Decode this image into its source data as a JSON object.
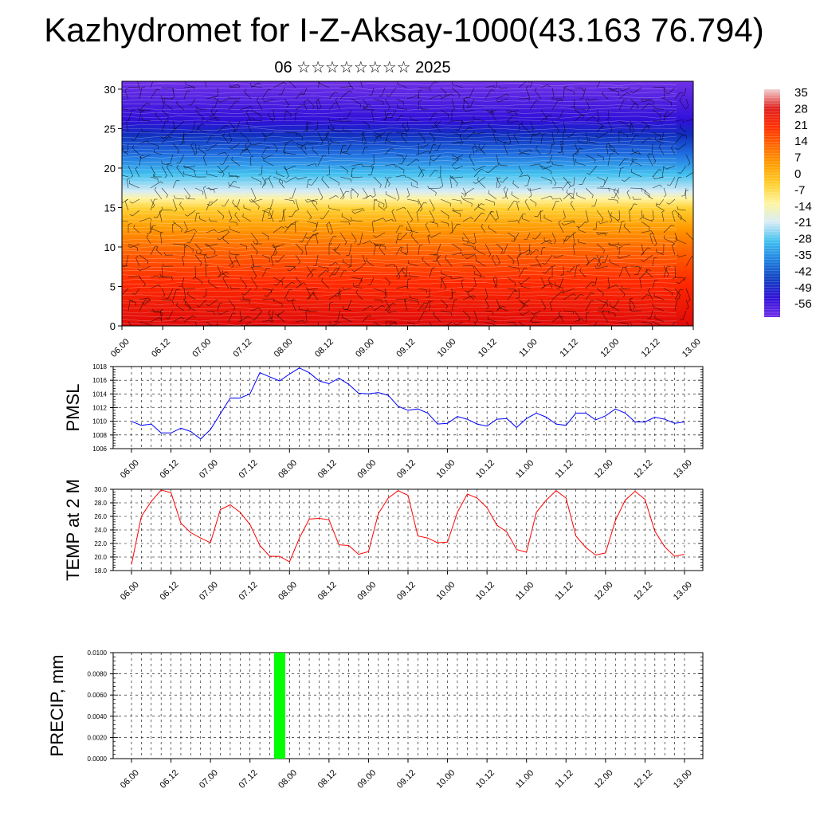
{
  "title": "Kazhydromet for I-Z-Aksay-1000(43.163 76.794)",
  "subtitle": "06 ☆☆☆☆☆☆☆☆ 2025",
  "colors": {
    "pmsl_line": "#0000ff",
    "temp_line": "#ff0000",
    "precip_bar": "#00ff00",
    "grid": "#000000"
  },
  "chart_data": [
    {
      "id": "cross_section",
      "type": "heatmap",
      "title": "",
      "x_ticks": [
        "06.00",
        "06.12",
        "07.00",
        "07.12",
        "08.00",
        "08.12",
        "09.00",
        "09.12",
        "10.00",
        "10.12",
        "11.00",
        "11.12",
        "12.00",
        "12.12",
        "13.00"
      ],
      "y_ticks": [
        0,
        5,
        10,
        15,
        20,
        25,
        30
      ],
      "ylim": [
        0,
        31
      ],
      "colorbar_labels": [
        "35",
        "28",
        "21",
        "14",
        "7",
        "0",
        "-7",
        "-14",
        "-21",
        "-28",
        "-35",
        "-42",
        "-49",
        "-56"
      ],
      "color_stops": [
        "#f2d0d0",
        "#e02020",
        "#ff3000",
        "#ff6a00",
        "#ffa000",
        "#ffd030",
        "#fff5a0",
        "#d8ecf5",
        "#40c0ef",
        "#2080e0",
        "#1040c0",
        "#3010d8",
        "#7030e8"
      ],
      "wind_barbs": true
    },
    {
      "id": "pmsl",
      "type": "line",
      "ylabel": "PMSL",
      "x_ticks": [
        "06.00",
        "06.12",
        "07.00",
        "07.12",
        "08.00",
        "08.12",
        "09.00",
        "09.12",
        "10.00",
        "10.12",
        "11.00",
        "11.12",
        "12.00",
        "12.12",
        "13.00"
      ],
      "y_ticks": [
        "1006",
        "1008",
        "1010",
        "1012",
        "1014",
        "1016",
        "1018"
      ],
      "ylim": [
        1006,
        1018
      ],
      "x": [
        0,
        1,
        2,
        3,
        4,
        5,
        6,
        7,
        8,
        9,
        10,
        11,
        12,
        13,
        14,
        15,
        16,
        17,
        18,
        19,
        20,
        21,
        22,
        23,
        24,
        25,
        26,
        27,
        28,
        29,
        30,
        31,
        32,
        33,
        34,
        35,
        36,
        37,
        38,
        39,
        40,
        41,
        42,
        43,
        44,
        45,
        46,
        47,
        48,
        49,
        50,
        51,
        52,
        53,
        54,
        55,
        56
      ],
      "values": [
        1010.0,
        1009.4,
        1009.6,
        1008.3,
        1008.3,
        1009.0,
        1008.5,
        1007.4,
        1008.8,
        1011.1,
        1013.4,
        1013.4,
        1014.0,
        1017.1,
        1016.5,
        1015.9,
        1016.9,
        1017.8,
        1017.1,
        1015.9,
        1015.5,
        1016.3,
        1015.4,
        1014.1,
        1014.0,
        1014.2,
        1013.8,
        1012.2,
        1011.6,
        1011.8,
        1011.2,
        1009.6,
        1009.7,
        1010.7,
        1010.3,
        1009.6,
        1009.3,
        1010.3,
        1010.4,
        1009.1,
        1010.4,
        1011.2,
        1010.6,
        1009.6,
        1009.4,
        1011.2,
        1011.2,
        1010.2,
        1010.8,
        1011.8,
        1011.2,
        1009.9,
        1009.9,
        1010.6,
        1010.3,
        1009.7,
        1009.9
      ]
    },
    {
      "id": "temp2m",
      "type": "line",
      "ylabel": "TEMP at 2 M",
      "x_ticks": [
        "06.00",
        "06.12",
        "07.00",
        "07.12",
        "08.00",
        "08.12",
        "09.00",
        "09.12",
        "10.00",
        "10.12",
        "11.00",
        "11.12",
        "12.00",
        "12.12",
        "13.00"
      ],
      "y_ticks": [
        "18.0",
        "20.0",
        "22.0",
        "24.0",
        "26.0",
        "28.0",
        "30.0"
      ],
      "ylim": [
        18,
        30
      ],
      "x": [
        0,
        1,
        2,
        3,
        4,
        5,
        6,
        7,
        8,
        9,
        10,
        11,
        12,
        13,
        14,
        15,
        16,
        17,
        18,
        19,
        20,
        21,
        22,
        23,
        24,
        25,
        26,
        27,
        28,
        29,
        30,
        31,
        32,
        33,
        34,
        35,
        36,
        37,
        38,
        39,
        40,
        41,
        42,
        43,
        44,
        45,
        46,
        47,
        48,
        49,
        50,
        51,
        52,
        53,
        54,
        55,
        56
      ],
      "values": [
        18.9,
        26.0,
        28.2,
        29.9,
        29.5,
        25.0,
        23.6,
        22.8,
        22.1,
        27.0,
        27.7,
        26.6,
        24.8,
        21.7,
        20.1,
        20.1,
        19.3,
        22.8,
        25.6,
        25.7,
        25.5,
        21.8,
        21.7,
        20.4,
        20.8,
        26.4,
        28.7,
        29.8,
        29.1,
        23.1,
        22.8,
        22.1,
        22.2,
        26.6,
        29.3,
        28.7,
        27.3,
        24.7,
        23.7,
        21.1,
        20.7,
        26.6,
        28.4,
        29.8,
        28.7,
        23.1,
        21.4,
        20.3,
        20.6,
        25.4,
        28.4,
        29.7,
        28.5,
        23.8,
        21.5,
        20.1,
        20.4
      ]
    },
    {
      "id": "precip",
      "type": "bar",
      "ylabel": "PRECIP, mm",
      "x_ticks": [
        "06.00",
        "06.12",
        "07.00",
        "07.12",
        "08.00",
        "08.12",
        "09.00",
        "09.12",
        "10.00",
        "10.12",
        "11.00",
        "11.12",
        "12.00",
        "12.12",
        "13.00"
      ],
      "y_ticks": [
        "0.0000",
        "0.0020",
        "0.0040",
        "0.0060",
        "0.0080",
        "0.0100"
      ],
      "ylim": [
        0,
        0.01
      ],
      "bars": [
        {
          "x": 15,
          "value": 0.01
        }
      ]
    }
  ]
}
